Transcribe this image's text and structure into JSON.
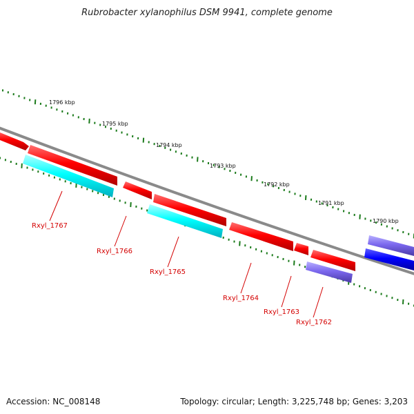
{
  "title": "Rubrobacter xylanophilus DSM 9941, complete genome",
  "kbp_labels": [
    "1796 kbp",
    "1795 kbp",
    "1794 kbp",
    "1793 kbp",
    "1792 kbp",
    "1791 kbp",
    "1790 kbp"
  ],
  "genes": [
    "Rxyl_1767",
    "Rxyl_1766",
    "Rxyl_1765",
    "Rxyl_1764",
    "Rxyl_1763",
    "Rxyl_1762"
  ],
  "footer": {
    "accession": "Accession: NC_008148",
    "topology": "Topology: circular; Length: 3,225,748 bp; Genes: 3,203"
  },
  "colors": {
    "cds_forward": "#ff0000",
    "cds_reverse_cyan": "#00ffff",
    "cds_reverse_purple": "#7b68ee",
    "cds_blue": "#0000ff",
    "backbone": "#808080",
    "ticks": "#1a7a1a",
    "label": "#d40000"
  }
}
